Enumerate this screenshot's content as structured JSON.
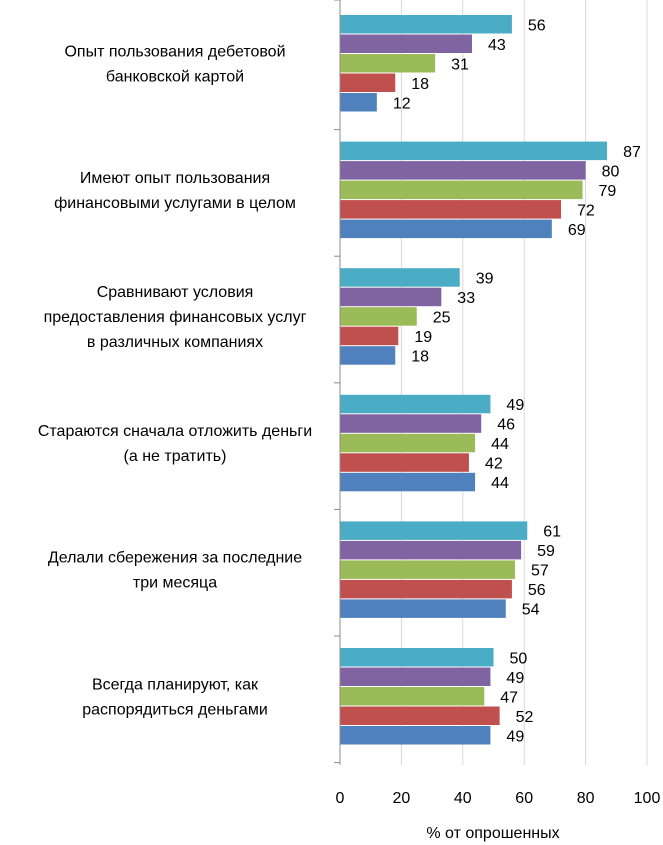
{
  "chart_data": {
    "type": "bar",
    "orientation": "horizontal",
    "categories": [
      [
        "Опыт пользования дебетовой",
        "банковской картой"
      ],
      [
        "Имеют опыт пользования",
        "финансовыми услугами в целом"
      ],
      [
        "Сравнивают условия",
        "предоставления финансовых услуг",
        "в различных компаниях"
      ],
      [
        "Стараются сначала отложить деньги",
        "(а не тратить)"
      ],
      [
        "Делали сбережения за последние",
        "три месяца"
      ],
      [
        "Всегда планируют, как",
        "распорядиться деньгами"
      ]
    ],
    "series": [
      {
        "name": "series-1",
        "color": "#4bacc6",
        "values": [
          56,
          87,
          39,
          49,
          61,
          50
        ]
      },
      {
        "name": "series-2",
        "color": "#8064a2",
        "values": [
          43,
          80,
          33,
          46,
          59,
          49
        ]
      },
      {
        "name": "series-3",
        "color": "#9bbb59",
        "values": [
          31,
          79,
          25,
          44,
          57,
          47
        ]
      },
      {
        "name": "series-4",
        "color": "#c0504d",
        "values": [
          18,
          72,
          19,
          42,
          56,
          52
        ]
      },
      {
        "name": "series-5",
        "color": "#4f81bd",
        "values": [
          12,
          69,
          18,
          44,
          54,
          49
        ]
      }
    ],
    "xlim": [
      0,
      100
    ],
    "xticks": [
      0,
      20,
      40,
      60,
      80,
      100
    ],
    "xlabel": "% от опрошенных",
    "ylabel": "",
    "title": "",
    "grid": true,
    "legend": false
  }
}
